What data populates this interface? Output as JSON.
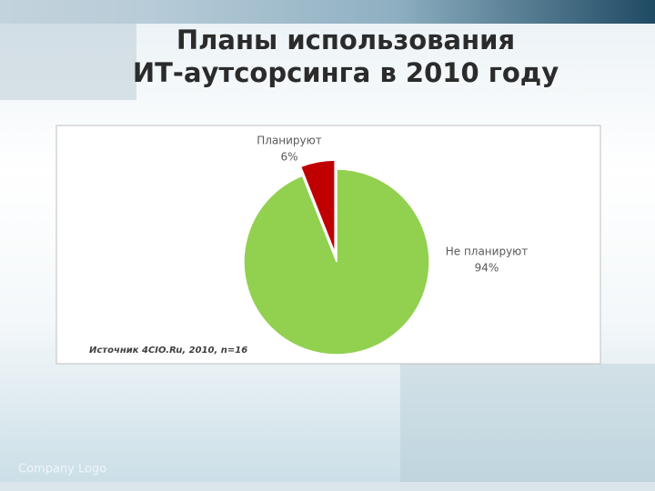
{
  "title": [
    "Планы использования",
    "ИТ-аутсорсинга в 2010 году"
  ],
  "chart_data": {
    "type": "pie",
    "categories": [
      "Планируют",
      "Не планируют"
    ],
    "values": [
      6,
      94
    ],
    "value_labels": [
      "6%",
      "94%"
    ],
    "colors": [
      "#c00000",
      "#92d050"
    ],
    "note": "Источник 4CIO.Ru, 2010, n=16"
  },
  "footer": "Company Logo"
}
